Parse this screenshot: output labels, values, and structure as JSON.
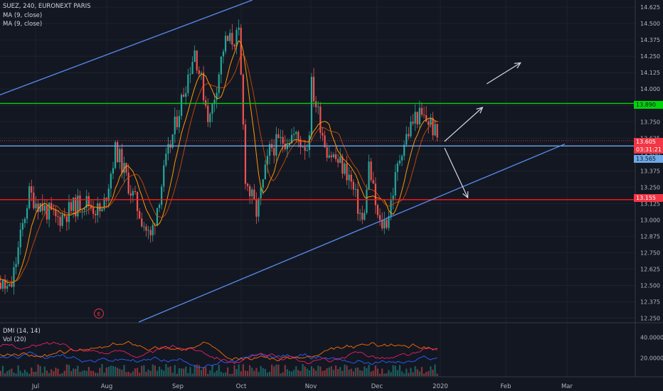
{
  "header": {
    "symbol": "SUEZ, 240, EURONEXT PARIS",
    "indicators": [
      "MA (9, close)",
      "MA (9, close)"
    ]
  },
  "lower_pane": {
    "indicators": [
      "DMI (14, 14)",
      "Vol (20)"
    ],
    "ticks": [
      "40.0000",
      "20.0000"
    ]
  },
  "price_tags": [
    {
      "text": "13.890",
      "value": 13.89
    },
    {
      "text": "13.605",
      "value": 13.605
    },
    {
      "text": "03:31:21"
    },
    {
      "text": "13.565",
      "value": 13.565
    },
    {
      "text": "13.155",
      "value": 13.155
    }
  ],
  "earnings_marker": "E",
  "colors": {
    "background": "#131722",
    "up_candle": "#26a69a",
    "down_candle": "#ef5350",
    "ma_fast": "#ff9800",
    "ma_slow": "#e65100",
    "trendline": "#5b8def",
    "support": "#ff1a1a",
    "resistance": "#00d40a",
    "arrow": "#cfd8e6"
  },
  "chart_data": {
    "type": "candlestick",
    "symbol": "SUEZ",
    "timeframe": "240",
    "exchange": "EURONEXT PARIS",
    "x_ticks": [
      "Jul",
      "Aug",
      "Sep",
      "Oct",
      "Nov",
      "Dec",
      "2020",
      "Feb",
      "Mar"
    ],
    "y_ticks": [
      "14.625",
      "14.500",
      "14.375",
      "14.250",
      "14.125",
      "14.000",
      "13.875",
      "13.750",
      "13.625",
      "13.500",
      "13.375",
      "13.250",
      "13.125",
      "13.000",
      "12.875",
      "12.750",
      "12.625",
      "12.500",
      "12.375",
      "12.250"
    ],
    "ylim": [
      12.22,
      14.68
    ],
    "price_path": [
      {
        "date": "2019-06-10",
        "close": 12.6
      },
      {
        "date": "2019-06-20",
        "close": 12.45
      },
      {
        "date": "2019-06-28",
        "close": 13.2
      },
      {
        "date": "2019-07-10",
        "close": 13.0
      },
      {
        "date": "2019-07-22",
        "close": 13.15
      },
      {
        "date": "2019-07-30",
        "close": 13.05
      },
      {
        "date": "2019-08-05",
        "close": 13.55
      },
      {
        "date": "2019-08-12",
        "close": 13.2
      },
      {
        "date": "2019-08-20",
        "close": 12.85
      },
      {
        "date": "2019-08-27",
        "close": 13.45
      },
      {
        "date": "2019-09-04",
        "close": 14.0
      },
      {
        "date": "2019-09-09",
        "close": 14.3
      },
      {
        "date": "2019-09-16",
        "close": 13.75
      },
      {
        "date": "2019-09-23",
        "close": 14.35
      },
      {
        "date": "2019-09-30",
        "close": 14.4
      },
      {
        "date": "2019-10-03",
        "close": 13.3
      },
      {
        "date": "2019-10-08",
        "close": 13.05
      },
      {
        "date": "2019-10-14",
        "close": 13.55
      },
      {
        "date": "2019-10-24",
        "close": 13.65
      },
      {
        "date": "2019-10-31",
        "close": 13.55
      },
      {
        "date": "2019-11-01",
        "close": 14.05
      },
      {
        "date": "2019-11-08",
        "close": 13.55
      },
      {
        "date": "2019-11-18",
        "close": 13.35
      },
      {
        "date": "2019-11-25",
        "close": 12.95
      },
      {
        "date": "2019-11-27",
        "close": 13.45
      },
      {
        "date": "2019-12-02",
        "close": 12.95
      },
      {
        "date": "2019-12-06",
        "close": 13.0
      },
      {
        "date": "2019-12-13",
        "close": 13.55
      },
      {
        "date": "2019-12-20",
        "close": 13.8
      },
      {
        "date": "2019-12-27",
        "close": 13.75
      },
      {
        "date": "2019-12-31",
        "close": 13.605
      }
    ],
    "horizontal_levels": [
      {
        "value": 13.89,
        "color": "#00d40a",
        "label": "13.890"
      },
      {
        "value": 13.565,
        "color": "#6ea9e8",
        "label": "13.565"
      },
      {
        "value": 13.155,
        "color": "#ff1a1a",
        "label": "13.155"
      }
    ],
    "trendlines": [
      {
        "from": {
          "date": "2019-06-01",
          "value": 13.86
        },
        "to": {
          "date": "2019-10-06",
          "value": 14.68
        }
      },
      {
        "from": {
          "date": "2019-08-15",
          "value": 12.22
        },
        "to": {
          "date": "2020-02-29",
          "value": 13.58
        }
      }
    ],
    "arrows": [
      {
        "from": {
          "date": "2020-01-03",
          "value": 13.6
        },
        "to": {
          "date": "2020-01-21",
          "value": 13.86
        }
      },
      {
        "from": {
          "date": "2020-01-23",
          "value": 14.04
        },
        "to": {
          "date": "2020-02-08",
          "value": 14.2
        }
      },
      {
        "from": {
          "date": "2020-01-03",
          "value": 13.55
        },
        "to": {
          "date": "2020-01-14",
          "value": 13.17
        }
      }
    ],
    "ma_period": 9,
    "grid": true
  }
}
